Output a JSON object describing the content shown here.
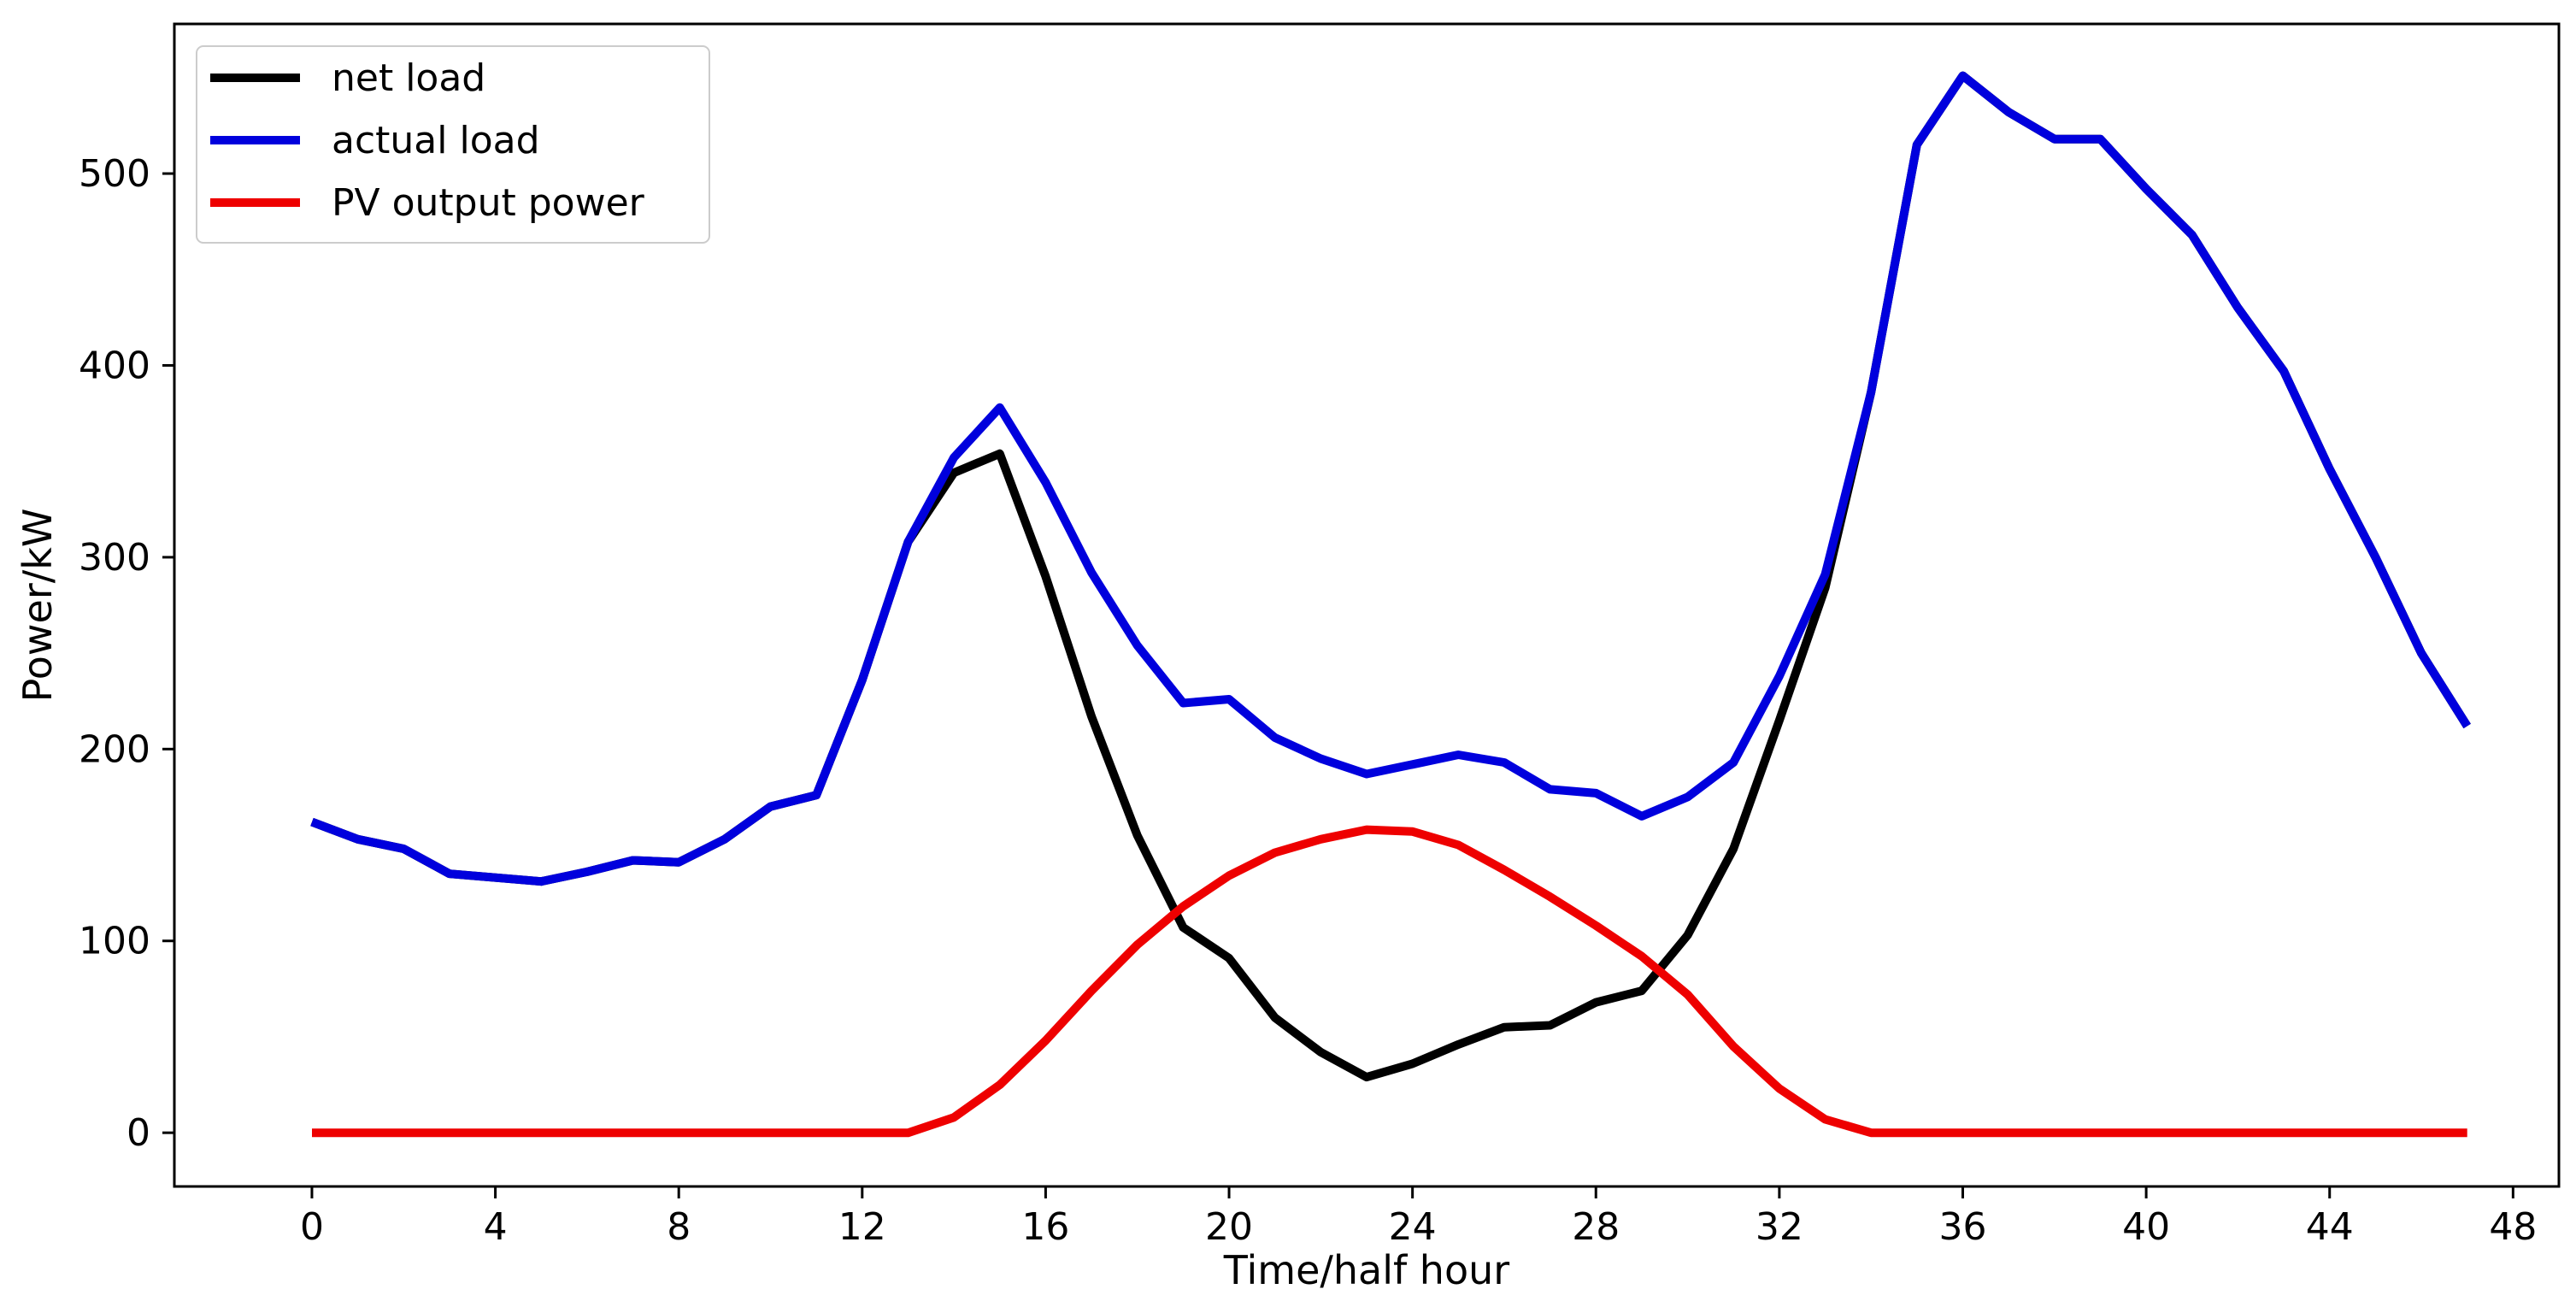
{
  "chart_data": {
    "type": "line",
    "title": "",
    "xlabel": "Time/half hour",
    "ylabel": "Power/kW",
    "xlim": [
      -3,
      49
    ],
    "ylim": [
      -28,
      578
    ],
    "xticks": [
      0,
      4,
      8,
      12,
      16,
      20,
      24,
      28,
      32,
      36,
      40,
      44,
      48
    ],
    "yticks": [
      0,
      100,
      200,
      300,
      400,
      500
    ],
    "grid": false,
    "legend_position": "top-left",
    "x": [
      0,
      1,
      2,
      3,
      4,
      5,
      6,
      7,
      8,
      9,
      10,
      11,
      12,
      13,
      14,
      15,
      16,
      17,
      18,
      19,
      20,
      21,
      22,
      23,
      24,
      25,
      26,
      27,
      28,
      29,
      30,
      31,
      32,
      33,
      34,
      35,
      36,
      37,
      38,
      39,
      40,
      41,
      42,
      43,
      44,
      45,
      46,
      47
    ],
    "series": [
      {
        "name": "net load",
        "color": "#000000",
        "values": [
          162,
          153,
          148,
          135,
          133,
          131,
          136,
          142,
          141,
          153,
          170,
          176,
          236,
          308,
          344,
          354,
          290,
          217,
          155,
          107,
          91,
          60,
          42,
          29,
          36,
          46,
          55,
          56,
          68,
          74,
          103,
          148,
          215,
          284,
          386,
          515,
          551,
          532,
          518,
          518,
          492,
          468,
          430,
          397,
          346,
          300,
          250,
          212
        ]
      },
      {
        "name": "actual load",
        "color": "#0000dd",
        "values": [
          162,
          153,
          148,
          135,
          133,
          131,
          136,
          142,
          141,
          153,
          170,
          176,
          236,
          308,
          352,
          378,
          339,
          292,
          254,
          224,
          226,
          206,
          195,
          187,
          192,
          197,
          193,
          179,
          177,
          165,
          175,
          193,
          238,
          291,
          386,
          515,
          551,
          532,
          518,
          518,
          492,
          468,
          430,
          397,
          346,
          300,
          250,
          212
        ]
      },
      {
        "name": "PV output power",
        "color": "#ee0000",
        "values": [
          0,
          0,
          0,
          0,
          0,
          0,
          0,
          0,
          0,
          0,
          0,
          0,
          0,
          0,
          8,
          25,
          48,
          74,
          98,
          118,
          134,
          146,
          153,
          158,
          157,
          150,
          137,
          123,
          108,
          92,
          72,
          45,
          23,
          7,
          0,
          0,
          0,
          0,
          0,
          0,
          0,
          0,
          0,
          0,
          0,
          0,
          0,
          0
        ]
      }
    ]
  }
}
